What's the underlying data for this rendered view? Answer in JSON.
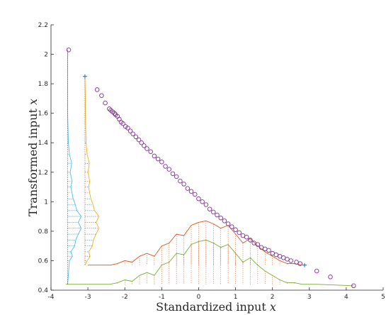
{
  "chart_data": {
    "type": "scatter",
    "title": "",
    "xlabel": "Standardized input",
    "xlabel_var": "x",
    "ylabel": "Transformed input",
    "ylabel_var": "x",
    "xlim": [
      -4,
      5
    ],
    "ylim": [
      0.4,
      2.2
    ],
    "xticks": [
      "-4",
      "-3",
      "-2",
      "-1",
      "0",
      "1",
      "2",
      "3",
      "4",
      "5"
    ],
    "yticks": [
      "0.4",
      "0.6",
      "0.8",
      "1",
      "1.2",
      "1.4",
      "1.6",
      "1.8",
      "2",
      "2.2"
    ],
    "grid": false,
    "colors": {
      "scatter": "#7E2F8E",
      "x_hist_line_a": "#D95319",
      "x_hist_line_b": "#77AC30",
      "x_hist_fill": "#D95319",
      "y_hist_line_a": "#EDB120",
      "y_hist_line_b": "#4DBEEE",
      "y_hist_fill": "#0072BD",
      "marker_plus": "#0072BD"
    },
    "series": [
      {
        "type": "scatter",
        "marker": "circle",
        "points": [
          [
            -3.52,
            2.03
          ],
          [
            -2.75,
            1.76
          ],
          [
            -2.63,
            1.72
          ],
          [
            -2.53,
            1.67
          ],
          [
            -2.42,
            1.63
          ],
          [
            -2.38,
            1.62
          ],
          [
            -2.33,
            1.61
          ],
          [
            -2.28,
            1.6
          ],
          [
            -2.25,
            1.59
          ],
          [
            -2.2,
            1.58
          ],
          [
            -2.15,
            1.56
          ],
          [
            -2.1,
            1.54
          ],
          [
            -2.05,
            1.53
          ],
          [
            -1.98,
            1.51
          ],
          [
            -1.92,
            1.5
          ],
          [
            -1.85,
            1.48
          ],
          [
            -1.78,
            1.46
          ],
          [
            -1.7,
            1.44
          ],
          [
            -1.62,
            1.42
          ],
          [
            -1.55,
            1.4
          ],
          [
            -1.48,
            1.38
          ],
          [
            -1.4,
            1.36
          ],
          [
            -1.3,
            1.34
          ],
          [
            -1.2,
            1.31
          ],
          [
            -1.1,
            1.29
          ],
          [
            -1.0,
            1.27
          ],
          [
            -0.9,
            1.24
          ],
          [
            -0.8,
            1.22
          ],
          [
            -0.7,
            1.19
          ],
          [
            -0.6,
            1.17
          ],
          [
            -0.5,
            1.14
          ],
          [
            -0.4,
            1.12
          ],
          [
            -0.3,
            1.09
          ],
          [
            -0.2,
            1.07
          ],
          [
            -0.1,
            1.05
          ],
          [
            0.0,
            1.02
          ],
          [
            0.1,
            1.0
          ],
          [
            0.2,
            0.98
          ],
          [
            0.3,
            0.95
          ],
          [
            0.4,
            0.93
          ],
          [
            0.5,
            0.91
          ],
          [
            0.6,
            0.89
          ],
          [
            0.7,
            0.87
          ],
          [
            0.8,
            0.85
          ],
          [
            0.9,
            0.83
          ],
          [
            1.0,
            0.81
          ],
          [
            1.1,
            0.79
          ],
          [
            1.2,
            0.77
          ],
          [
            1.3,
            0.76
          ],
          [
            1.4,
            0.74
          ],
          [
            1.5,
            0.72
          ],
          [
            1.6,
            0.71
          ],
          [
            1.7,
            0.69
          ],
          [
            1.8,
            0.68
          ],
          [
            1.9,
            0.67
          ],
          [
            2.0,
            0.65
          ],
          [
            2.1,
            0.64
          ],
          [
            2.2,
            0.63
          ],
          [
            2.3,
            0.62
          ],
          [
            2.4,
            0.61
          ],
          [
            2.5,
            0.6
          ],
          [
            2.65,
            0.59
          ],
          [
            2.75,
            0.58
          ],
          [
            3.2,
            0.53
          ],
          [
            3.57,
            0.49
          ],
          [
            4.2,
            0.43
          ]
        ]
      },
      {
        "type": "line",
        "name_role": "x marginal distribution (upper)",
        "x": [
          -3.0,
          -2.4,
          -2.2,
          -2.0,
          -1.8,
          -1.6,
          -1.4,
          -1.2,
          -1.0,
          -0.8,
          -0.6,
          -0.4,
          -0.2,
          0.0,
          0.2,
          0.4,
          0.6,
          0.8,
          1.0,
          1.2,
          1.4,
          1.6,
          1.8,
          2.0,
          2.2,
          2.4,
          2.6,
          2.8
        ],
        "y": [
          0.57,
          0.57,
          0.58,
          0.6,
          0.59,
          0.63,
          0.65,
          0.63,
          0.7,
          0.72,
          0.78,
          0.77,
          0.84,
          0.86,
          0.87,
          0.85,
          0.82,
          0.84,
          0.78,
          0.72,
          0.75,
          0.7,
          0.66,
          0.63,
          0.6,
          0.58,
          0.58,
          0.57
        ]
      },
      {
        "type": "line",
        "name_role": "x marginal distribution (lower)",
        "x": [
          -3.6,
          -2.4,
          -2.2,
          -2.0,
          -1.8,
          -1.6,
          -1.4,
          -1.2,
          -1.0,
          -0.8,
          -0.6,
          -0.4,
          -0.2,
          0.0,
          0.2,
          0.4,
          0.6,
          0.8,
          1.0,
          1.2,
          1.4,
          1.6,
          1.8,
          2.0,
          2.2,
          2.4,
          2.6,
          2.8,
          3.2,
          4.2
        ],
        "y": [
          0.44,
          0.44,
          0.45,
          0.47,
          0.46,
          0.5,
          0.52,
          0.5,
          0.57,
          0.59,
          0.65,
          0.64,
          0.71,
          0.73,
          0.74,
          0.72,
          0.69,
          0.71,
          0.65,
          0.59,
          0.62,
          0.57,
          0.53,
          0.5,
          0.47,
          0.45,
          0.45,
          0.44,
          0.44,
          0.43
        ]
      },
      {
        "type": "line",
        "name_role": "y marginal distribution (inner)",
        "y": [
          0.57,
          0.6,
          0.63,
          0.66,
          0.7,
          0.74,
          0.78,
          0.82,
          0.86,
          0.9,
          0.94,
          0.98,
          1.02,
          1.06,
          1.1,
          1.14,
          1.2,
          1.26,
          1.32,
          1.4,
          1.5,
          1.6,
          1.7,
          1.85
        ],
        "x": [
          -3.08,
          -3.02,
          -2.94,
          -2.98,
          -2.88,
          -2.85,
          -2.78,
          -2.7,
          -2.78,
          -2.7,
          -2.82,
          -2.86,
          -2.92,
          -2.95,
          -2.98,
          -2.95,
          -3.0,
          -2.96,
          -3.02,
          -3.05,
          -3.06,
          -3.07,
          -3.07,
          -3.08
        ]
      },
      {
        "type": "line",
        "name_role": "y marginal distribution (outer)",
        "y": [
          0.44,
          0.6,
          0.63,
          0.66,
          0.7,
          0.74,
          0.78,
          0.82,
          0.86,
          0.9,
          0.94,
          0.98,
          1.02,
          1.06,
          1.1,
          1.14,
          1.2,
          1.26,
          1.32,
          1.4,
          1.5,
          1.6,
          1.7,
          2.03
        ],
        "x": [
          -3.55,
          -3.5,
          -3.42,
          -3.46,
          -3.36,
          -3.33,
          -3.26,
          -3.18,
          -3.26,
          -3.18,
          -3.3,
          -3.34,
          -3.4,
          -3.43,
          -3.46,
          -3.43,
          -3.48,
          -3.44,
          -3.5,
          -3.53,
          -3.54,
          -3.55,
          -3.55,
          -3.55
        ]
      }
    ],
    "markers_plus": [
      [
        -3.08,
        1.85
      ],
      [
        2.87,
        0.57
      ]
    ]
  }
}
